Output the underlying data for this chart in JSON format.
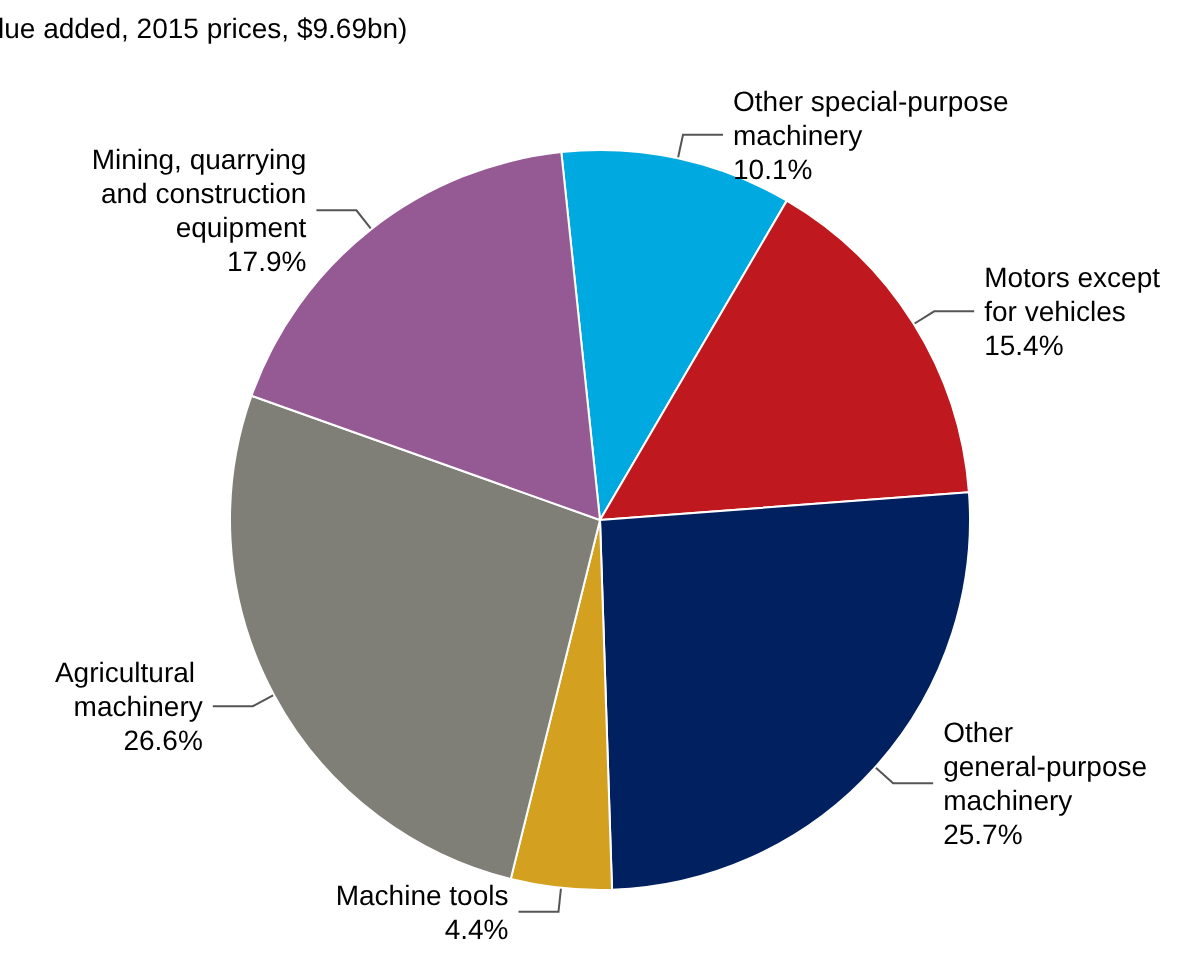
{
  "chart_data": {
    "type": "pie",
    "subtitle": "lue added, 2015 prices, $9.69bn)",
    "categories": [
      "Other special-purpose machinery",
      "Motors except for vehicles",
      "Other general-purpose machinery",
      "Machine tools",
      "Agricultural machinery",
      "Mining, quarrying and construction equipment"
    ],
    "values": [
      10.1,
      15.4,
      25.7,
      4.4,
      26.6,
      17.9
    ],
    "value_labels": [
      "10.1%",
      "15.4%",
      "25.7%",
      "4.4%",
      "26.6%",
      "17.9%"
    ],
    "colors": [
      "#00a9e0",
      "#c0181f",
      "#002060",
      "#d4a020",
      "#7f7f77",
      "#955a94"
    ],
    "legend": false
  }
}
